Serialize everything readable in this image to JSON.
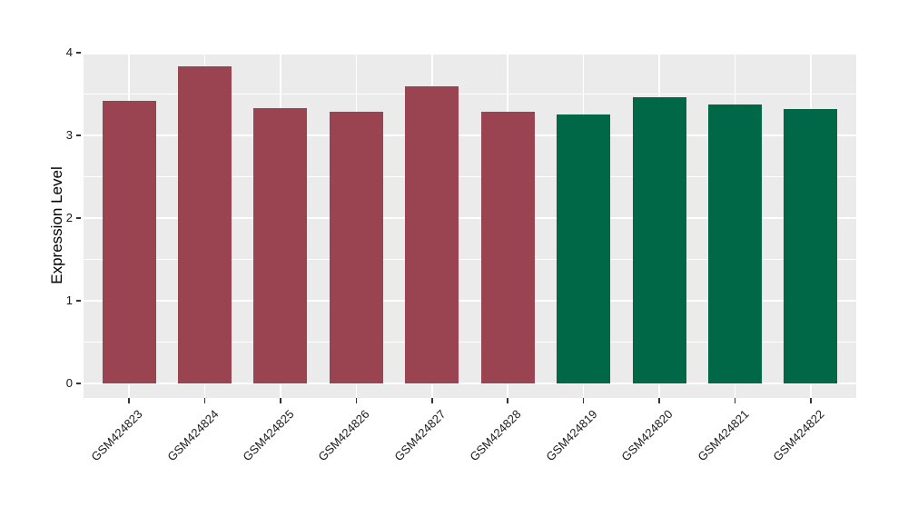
{
  "figure": {
    "background": "#FFFFFF"
  },
  "chart_data": {
    "type": "bar",
    "title": "",
    "xlabel": "",
    "ylabel": "Expression Level",
    "categories": [
      "GSM424823",
      "GSM424824",
      "GSM424825",
      "GSM424826",
      "GSM424827",
      "GSM424828",
      "GSM424819",
      "GSM424820",
      "GSM424821",
      "GSM424822"
    ],
    "values": [
      3.42,
      3.83,
      3.33,
      3.29,
      3.59,
      3.29,
      3.25,
      3.46,
      3.37,
      3.32
    ],
    "groups": [
      "red",
      "red",
      "red",
      "red",
      "red",
      "red",
      "green",
      "green",
      "green",
      "green"
    ],
    "group_colors": {
      "red": "#9B4451",
      "green": "#006747"
    },
    "ylim": [
      0,
      4
    ],
    "yticks": [
      0,
      1,
      2,
      3,
      4
    ],
    "y_minor_ticks": [
      0.5,
      1.5,
      2.5,
      3.5
    ],
    "x_tick_rotation_deg": 45,
    "grid": "on",
    "legend": "none",
    "panel_bg": "#EBEBEB",
    "gridline_color": "#FFFFFF",
    "axis_text_color": "#1A1A1A",
    "tick_mark_color": "#333333"
  }
}
